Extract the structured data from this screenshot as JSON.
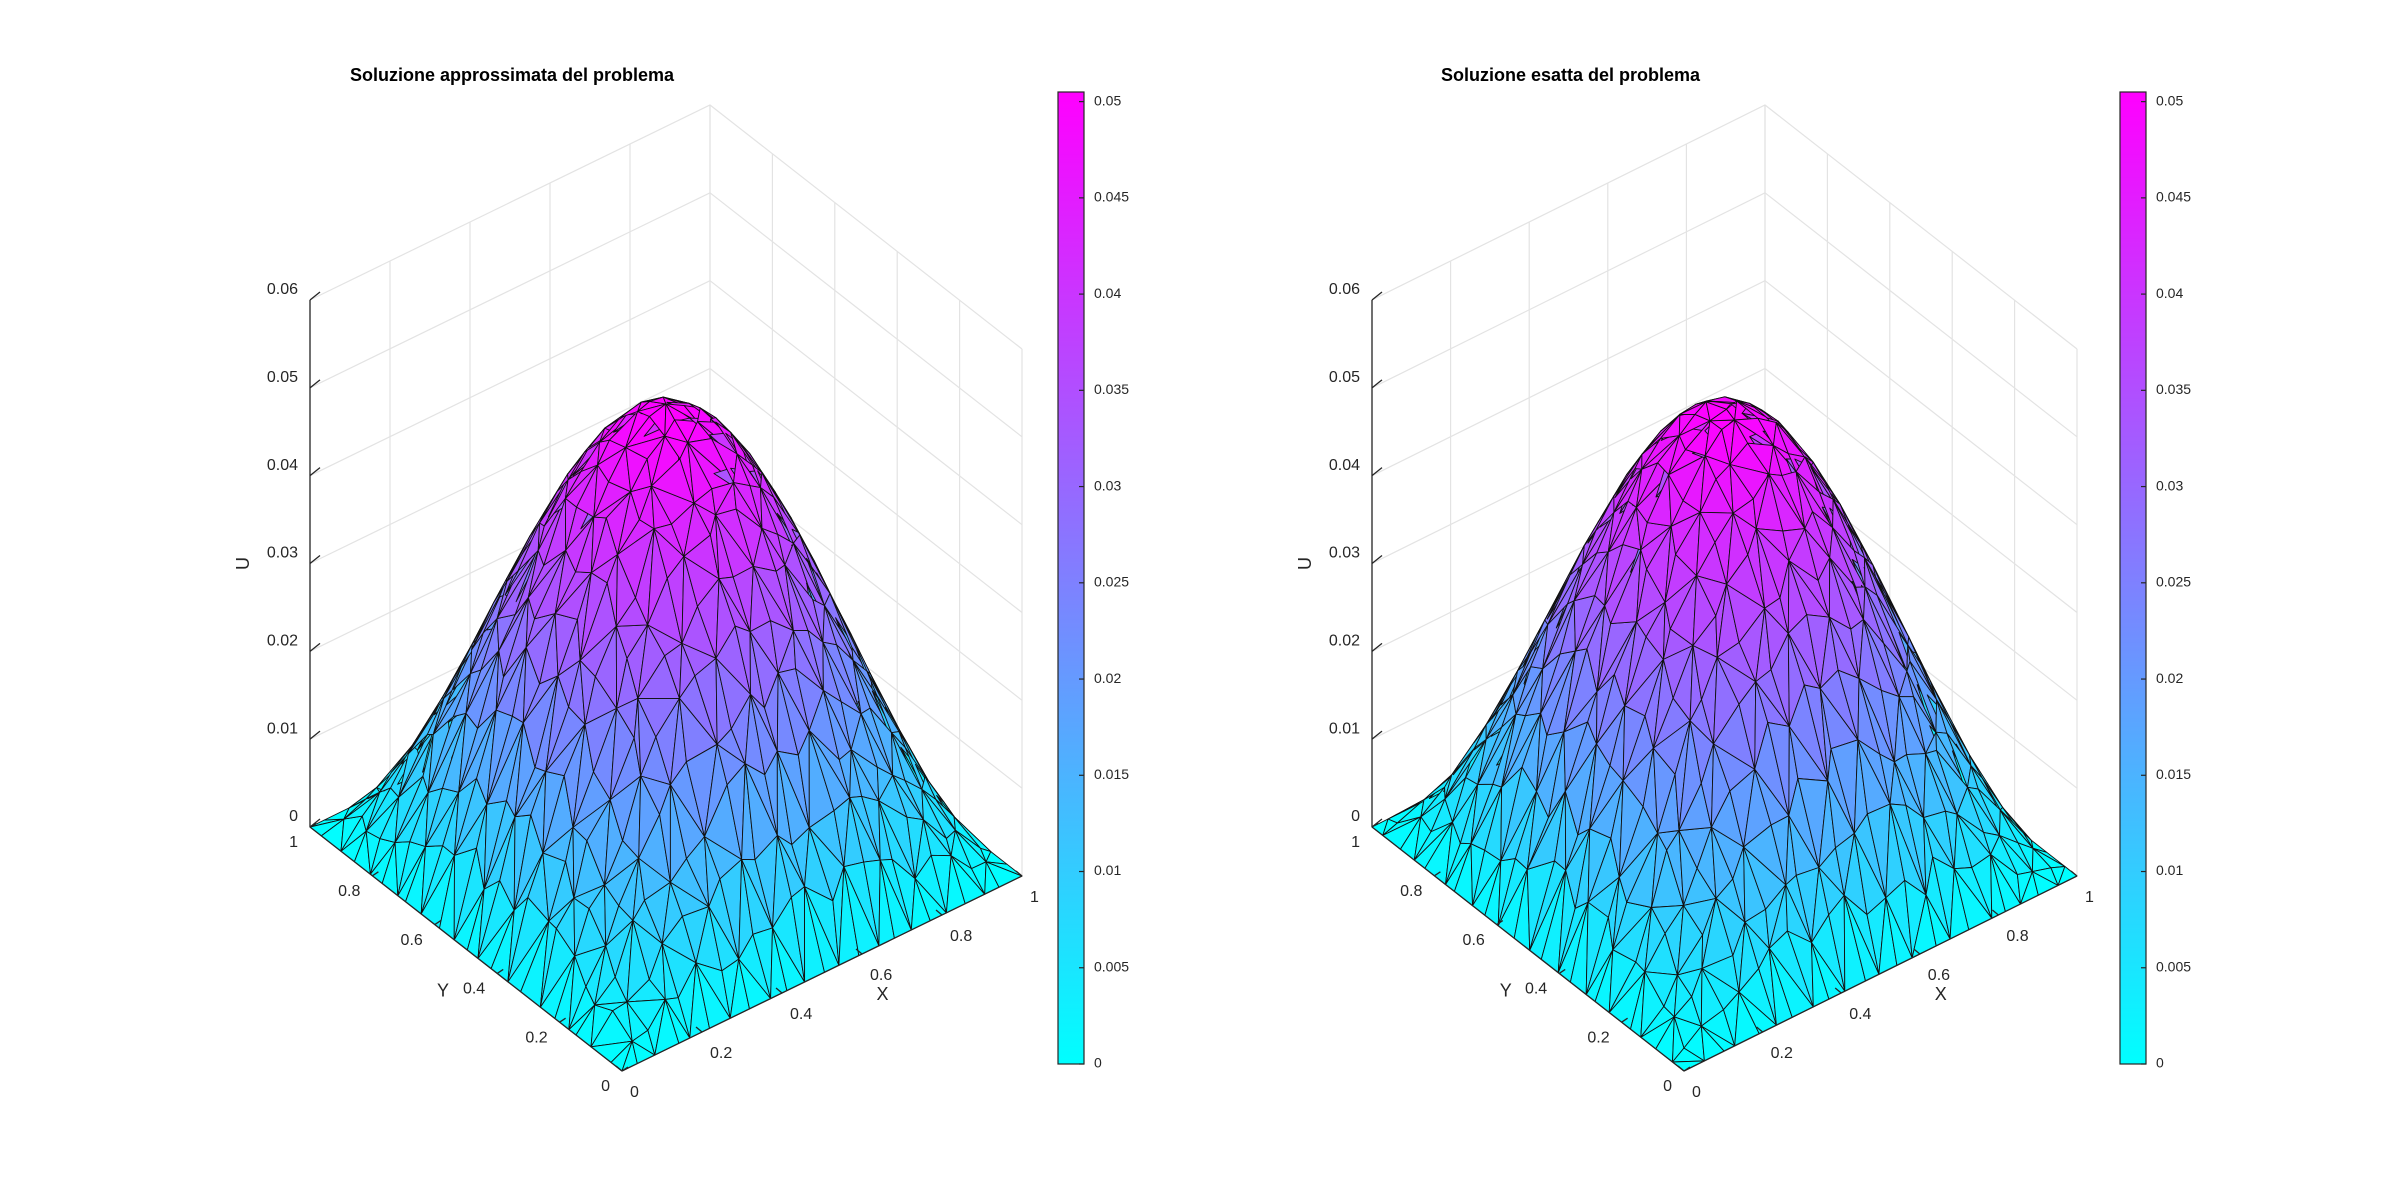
{
  "chart_data": [
    {
      "type": "surface",
      "title": "Soluzione approssimata del problema",
      "xlabel": "X",
      "ylabel": "Y",
      "zlabel": "U",
      "x_ticks": [
        "0",
        "0.2",
        "0.4",
        "0.6",
        "0.8",
        "1"
      ],
      "y_ticks": [
        "0",
        "0.2",
        "0.4",
        "0.6",
        "0.8",
        "1"
      ],
      "z_ticks": [
        "0",
        "0.01",
        "0.02",
        "0.03",
        "0.04",
        "0.05",
        "0.06"
      ],
      "xlim": [
        0,
        1
      ],
      "ylim": [
        0,
        1
      ],
      "zlim": [
        0,
        0.06
      ],
      "peak_value": 0.0505,
      "peak_at": [
        0.5,
        0.5
      ],
      "mesh": "triangular",
      "grid": true,
      "colorbar": {
        "ticks": [
          "0",
          "0.005",
          "0.01",
          "0.015",
          "0.02",
          "0.025",
          "0.03",
          "0.035",
          "0.04",
          "0.045",
          "0.05"
        ],
        "range": [
          0,
          0.0505
        ],
        "colormap": [
          "#00ffff",
          "#ff00ff"
        ]
      }
    },
    {
      "type": "surface",
      "title": "Soluzione esatta del problema",
      "xlabel": "X",
      "ylabel": "Y",
      "zlabel": "U",
      "x_ticks": [
        "0",
        "0.2",
        "0.4",
        "0.6",
        "0.8",
        "1"
      ],
      "y_ticks": [
        "0",
        "0.2",
        "0.4",
        "0.6",
        "0.8",
        "1"
      ],
      "z_ticks": [
        "0",
        "0.01",
        "0.02",
        "0.03",
        "0.04",
        "0.05",
        "0.06"
      ],
      "xlim": [
        0,
        1
      ],
      "ylim": [
        0,
        1
      ],
      "zlim": [
        0,
        0.06
      ],
      "peak_value": 0.0505,
      "peak_at": [
        0.5,
        0.5
      ],
      "mesh": "triangular",
      "grid": true,
      "colorbar": {
        "ticks": [
          "0",
          "0.005",
          "0.01",
          "0.015",
          "0.02",
          "0.025",
          "0.03",
          "0.035",
          "0.04",
          "0.045",
          "0.05"
        ],
        "range": [
          0,
          0.0505
        ],
        "colormap": [
          "#00ffff",
          "#ff00ff"
        ]
      }
    }
  ]
}
